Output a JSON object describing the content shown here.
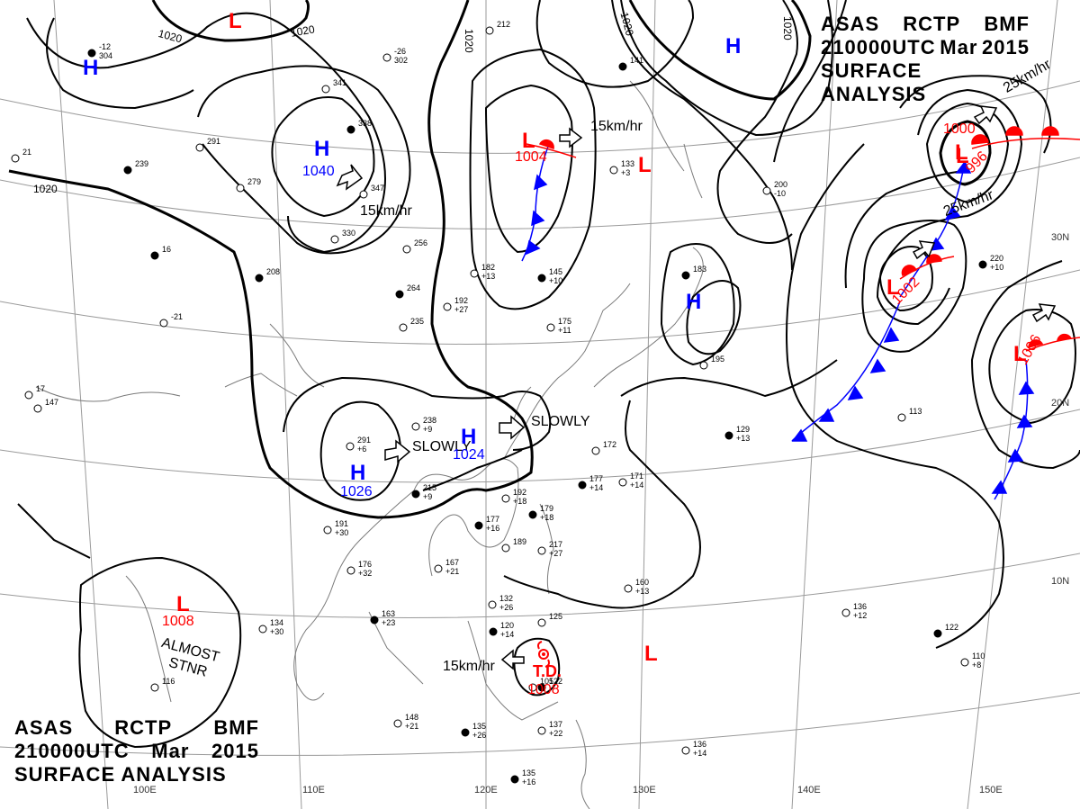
{
  "title": {
    "agency": "ASAS",
    "station": "RCTP",
    "unit": "BMF",
    "datetime": "210000UTC",
    "month": "Mar",
    "year": "2015",
    "product": "SURFACE ANALYSIS"
  },
  "colors": {
    "high": "#0000ff",
    "low": "#ff0000",
    "isobar": "#000000",
    "grid": "#999999",
    "coast": "#777777"
  },
  "lon_labels": [
    "100E",
    "110E",
    "120E",
    "130E",
    "140E",
    "150E"
  ],
  "lat_labels": [
    "30N",
    "20N",
    "10N"
  ],
  "isobar_labels": [
    "1020",
    "1020",
    "1020",
    "1020",
    "1020",
    "1020"
  ],
  "pressure_systems": [
    {
      "type": "H",
      "center_value": "1040",
      "motion": "15km/hr"
    },
    {
      "type": "H",
      "center_value": "1026",
      "motion": "SLOWLY"
    },
    {
      "type": "H",
      "center_value": "1024",
      "motion": "SLOWLY"
    },
    {
      "type": "H",
      "center_value": "",
      "motion": ""
    },
    {
      "type": "H",
      "center_value": "",
      "motion": ""
    },
    {
      "type": "H",
      "center_value": "",
      "motion": ""
    },
    {
      "type": "L",
      "center_value": "1004",
      "motion": "15km/hr"
    },
    {
      "type": "L",
      "center_value": "1000",
      "motion": "25km/hr"
    },
    {
      "type": "L",
      "center_value": "996",
      "motion": ""
    },
    {
      "type": "L",
      "center_value": "1002",
      "motion": "25km/hr"
    },
    {
      "type": "L",
      "center_value": "1006",
      "motion": ""
    },
    {
      "type": "L",
      "center_value": "1008",
      "motion": "ALMOST STNR"
    },
    {
      "type": "L",
      "center_value": "",
      "motion": ""
    },
    {
      "type": "L",
      "center_value": "",
      "motion": ""
    },
    {
      "type": "L",
      "center_value": "",
      "motion": ""
    },
    {
      "type": "TD",
      "center_value": "1008",
      "motion": "15km/hr"
    }
  ],
  "station_values": [
    "-12 304",
    "-26 302",
    "341",
    "338",
    "347",
    "330",
    "239",
    "291",
    "279",
    "208",
    "-21",
    "256",
    "264",
    "235",
    "182 +13",
    "145 +10",
    "192 +27",
    "175 +11",
    "183",
    "195",
    "212",
    "141",
    "133 +3",
    "200 -10",
    "220 +10",
    "238 +9",
    "291 +6",
    "215 +9",
    "191 +30",
    "176 +32",
    "163 +23",
    "134 +30",
    "167 +21",
    "177 +16",
    "189",
    "217 +27",
    "179 +18",
    "192 +18",
    "172",
    "177 +14",
    "171 +14",
    "113",
    "129 +13",
    "160 +13",
    "136 +12",
    "122",
    "110 +8",
    "132 +26",
    "120 +14",
    "125",
    "148 +21",
    "135 +26",
    "137 +22",
    "136 +14",
    "135 +16",
    "116",
    "105",
    "122",
    "147",
    "17",
    "16",
    "21"
  ]
}
